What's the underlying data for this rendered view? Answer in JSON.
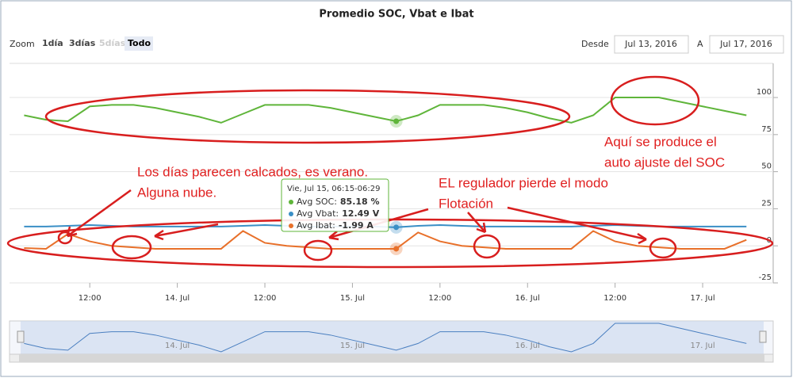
{
  "chart_data": {
    "type": "line",
    "title": "Promedio SOC, Vbat e Ibat",
    "zoom": {
      "label": "Zoom",
      "buttons": [
        "1día",
        "3días",
        "5días",
        "Todo"
      ],
      "from_label": "Desde",
      "from": "Jul 13, 2016",
      "to_label": "A",
      "to": "Jul 17, 2016"
    },
    "x": [
      "2016-07-13T03:00",
      "2016-07-13T06:00",
      "2016-07-13T09:00",
      "2016-07-13T12:00",
      "2016-07-13T15:00",
      "2016-07-13T18:00",
      "2016-07-13T21:00",
      "2016-07-14T00:00",
      "2016-07-14T03:00",
      "2016-07-14T06:00",
      "2016-07-14T09:00",
      "2016-07-14T12:00",
      "2016-07-14T15:00",
      "2016-07-14T18:00",
      "2016-07-14T21:00",
      "2016-07-15T00:00",
      "2016-07-15T03:00",
      "2016-07-15T06:00",
      "2016-07-15T09:00",
      "2016-07-15T12:00",
      "2016-07-15T15:00",
      "2016-07-15T18:00",
      "2016-07-15T21:00",
      "2016-07-16T00:00",
      "2016-07-16T03:00",
      "2016-07-16T06:00",
      "2016-07-16T09:00",
      "2016-07-16T12:00",
      "2016-07-16T15:00",
      "2016-07-16T18:00",
      "2016-07-16T21:00",
      "2016-07-17T00:00",
      "2016-07-17T03:00",
      "2016-07-17T06:00"
    ],
    "series": [
      {
        "color": "#5fb53a",
        "values": [
          88,
          85,
          84,
          94,
          95,
          95,
          93,
          90,
          87,
          83,
          89,
          95,
          95,
          95,
          93,
          90,
          87,
          84,
          88,
          95,
          95,
          95,
          93,
          90,
          86,
          83,
          88,
          100,
          100,
          100,
          97,
          94,
          91,
          88
        ]
      },
      {
        "color": "#3a8fc6",
        "values": [
          13,
          13,
          13.5,
          14,
          13.5,
          13,
          13,
          13,
          13,
          13,
          13.5,
          14,
          13.5,
          13,
          13,
          13,
          13,
          12.5,
          13.5,
          14,
          13.5,
          13,
          13,
          13,
          13,
          13,
          13.5,
          14,
          13.5,
          13,
          13,
          13,
          13,
          13
        ]
      },
      {
        "color": "#e8702a",
        "values": [
          -1.5,
          -2,
          8,
          3,
          0,
          -1,
          -2,
          -2,
          -2,
          -2,
          10,
          2,
          0,
          -1,
          -2,
          -2,
          -2,
          -2,
          9,
          3,
          0,
          -1,
          -2,
          -2,
          -2,
          -2,
          10,
          3,
          0,
          -1,
          -2,
          -2,
          -2,
          4
        ]
      }
    ],
    "xlim": [
      "2016-07-13T01:00",
      "2016-07-17T09:40"
    ],
    "xticks": [
      {
        "value": "2016-07-13T12:00",
        "label": "12:00"
      },
      {
        "value": "2016-07-14T00:00",
        "label": "14. Jul"
      },
      {
        "value": "2016-07-14T12:00",
        "label": "12:00"
      },
      {
        "value": "2016-07-15T00:00",
        "label": "15. Jul"
      },
      {
        "value": "2016-07-15T12:00",
        "label": "12:00"
      },
      {
        "value": "2016-07-16T00:00",
        "label": "16. Jul"
      },
      {
        "value": "2016-07-16T12:00",
        "label": "12:00"
      },
      {
        "value": "2016-07-17T00:00",
        "label": "17. Jul"
      }
    ],
    "ylim": [
      -25,
      123
    ],
    "yticks": [
      -25,
      0,
      25,
      50,
      75,
      100
    ],
    "grid": true,
    "tooltip": {
      "title": "Vie, Jul 15, 06:15-06:29",
      "items": [
        {
          "label": "Avg SOC:",
          "value": "85.18 %"
        },
        {
          "label": "Avg Vbat:",
          "value": "12.49 V"
        },
        {
          "label": "Avg Ibat:",
          "value": "-1.99 A"
        }
      ]
    },
    "annotations": [
      "Los días parecen calcados, es verano.",
      "Alguna nube.",
      "EL regulador pierde el modo",
      "Flotación",
      "Aquí se produce el",
      "auto ajuste del SOC"
    ]
  }
}
